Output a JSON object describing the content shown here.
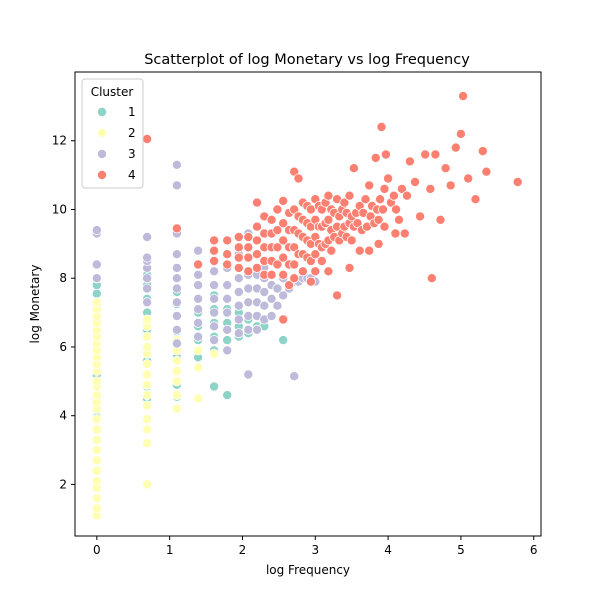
{
  "colors": {
    "cluster_1": "#8dd3c7",
    "cluster_2": "#ffffb3",
    "cluster_3": "#bebada",
    "cluster_4": "#fb8072",
    "marker_edge": "#ffffff",
    "axis": "#000000",
    "legend_border": "#cccccc"
  },
  "chart_data": {
    "type": "scatter",
    "title": "Scatterplot of log Monetary vs log Frequency",
    "xlabel": "log Frequency",
    "ylabel": "log Monetary",
    "xlim": [
      -0.3,
      6.1
    ],
    "ylim": [
      0.5,
      14.0
    ],
    "xticks": [
      0,
      1,
      2,
      3,
      4,
      5,
      6
    ],
    "yticks": [
      2,
      4,
      6,
      8,
      10,
      12
    ],
    "grid": false,
    "legend": {
      "title": "Cluster",
      "placement": "top-left",
      "entries": [
        "1",
        "2",
        "3",
        "4"
      ]
    },
    "series": [
      {
        "name": "1",
        "x": [
          0.0,
          0.0,
          0.0,
          0.0,
          0.0,
          0.0,
          0.0,
          0.0,
          0.0,
          0.0,
          0.0,
          0.69,
          0.69,
          0.69,
          0.69,
          0.69,
          0.69,
          0.69,
          0.69,
          0.69,
          0.69,
          1.1,
          1.1,
          1.1,
          1.1,
          1.1,
          1.1,
          1.1,
          1.1,
          1.1,
          1.1,
          1.39,
          1.39,
          1.39,
          1.39,
          1.39,
          1.39,
          1.61,
          1.61,
          1.61,
          1.61,
          1.61,
          1.61,
          1.79,
          1.79,
          1.79,
          1.79,
          1.95,
          1.95,
          1.95,
          2.08,
          2.08,
          2.2,
          2.3,
          2.56
        ],
        "y": [
          3.95,
          4.5,
          5.2,
          5.55,
          6.1,
          6.5,
          6.85,
          7.2,
          7.55,
          7.8,
          8.0,
          4.5,
          4.85,
          5.2,
          5.6,
          6.0,
          6.5,
          7.0,
          7.4,
          7.8,
          8.1,
          4.55,
          4.9,
          5.3,
          5.7,
          6.1,
          6.45,
          6.9,
          7.25,
          7.6,
          8.0,
          5.7,
          6.2,
          6.6,
          7.0,
          7.4,
          7.8,
          4.85,
          5.9,
          6.3,
          6.7,
          7.1,
          7.5,
          4.6,
          6.2,
          6.7,
          7.1,
          6.3,
          6.6,
          7.0,
          6.4,
          6.8,
          6.6,
          6.6,
          6.2
        ]
      },
      {
        "name": "2",
        "x": [
          0.0,
          0.0,
          0.0,
          0.0,
          0.0,
          0.0,
          0.0,
          0.0,
          0.0,
          0.0,
          0.0,
          0.0,
          0.0,
          0.0,
          0.0,
          0.0,
          0.0,
          0.0,
          0.0,
          0.0,
          0.0,
          0.0,
          0.0,
          0.0,
          0.0,
          0.0,
          0.0,
          0.69,
          0.69,
          0.69,
          0.69,
          0.69,
          0.69,
          0.69,
          0.69,
          0.69,
          0.69,
          0.69,
          0.69,
          0.69,
          0.69,
          0.69,
          1.1,
          1.1,
          1.1,
          1.1,
          1.1,
          1.1,
          1.1,
          1.1,
          1.39,
          1.39,
          1.39,
          1.61,
          1.61
        ],
        "y": [
          1.1,
          1.3,
          1.6,
          1.9,
          2.1,
          2.4,
          2.7,
          3.0,
          3.3,
          3.6,
          3.9,
          4.2,
          4.4,
          4.6,
          4.85,
          5.0,
          5.3,
          5.5,
          5.7,
          5.9,
          6.1,
          6.3,
          6.5,
          6.7,
          6.9,
          7.1,
          7.3,
          2.0,
          3.2,
          3.6,
          3.9,
          4.3,
          4.6,
          4.9,
          5.2,
          5.5,
          5.8,
          6.0,
          6.3,
          6.6,
          6.8,
          12.05,
          4.2,
          4.6,
          5.0,
          5.3,
          5.6,
          5.9,
          6.2,
          6.5,
          4.5,
          5.4,
          5.9,
          5.8,
          6.2
        ]
      },
      {
        "name": "3",
        "x": [
          0.0,
          0.0,
          0.0,
          0.0,
          0.69,
          0.69,
          0.69,
          0.69,
          0.69,
          0.69,
          0.69,
          1.1,
          1.1,
          1.1,
          1.1,
          1.1,
          1.1,
          1.1,
          1.1,
          1.1,
          1.1,
          1.1,
          1.39,
          1.39,
          1.39,
          1.39,
          1.39,
          1.39,
          1.39,
          1.39,
          1.61,
          1.61,
          1.61,
          1.61,
          1.61,
          1.61,
          1.61,
          1.61,
          1.79,
          1.79,
          1.79,
          1.79,
          1.79,
          1.79,
          1.95,
          1.95,
          1.95,
          1.95,
          1.95,
          1.95,
          2.08,
          2.08,
          2.08,
          2.08,
          2.08,
          2.08,
          2.2,
          2.2,
          2.2,
          2.2,
          2.2,
          2.3,
          2.3,
          2.3,
          2.3,
          2.3,
          2.4,
          2.4,
          2.4,
          2.48,
          2.48,
          2.56,
          2.56,
          2.64,
          2.71,
          2.77,
          2.83,
          2.89,
          2.94,
          3.0,
          2.08,
          2.71
        ],
        "y": [
          8.0,
          8.4,
          9.3,
          9.4,
          7.3,
          7.7,
          8.0,
          8.3,
          8.5,
          8.6,
          9.2,
          6.1,
          6.5,
          6.9,
          7.3,
          7.7,
          8.0,
          8.3,
          8.7,
          9.3,
          10.7,
          11.3,
          6.3,
          6.7,
          7.1,
          7.4,
          7.8,
          8.1,
          8.4,
          8.8,
          6.2,
          6.6,
          7.0,
          7.4,
          7.8,
          8.2,
          8.5,
          8.8,
          5.9,
          6.5,
          7.0,
          7.4,
          7.8,
          8.3,
          6.4,
          6.8,
          7.2,
          7.6,
          8.0,
          8.7,
          6.5,
          6.9,
          7.3,
          7.7,
          8.1,
          9.3,
          6.5,
          6.9,
          7.3,
          7.7,
          8.1,
          6.8,
          7.2,
          7.6,
          8.0,
          8.3,
          6.9,
          7.4,
          7.8,
          7.2,
          7.7,
          7.5,
          8.0,
          7.7,
          7.9,
          7.9,
          8.0,
          8.0,
          8.0,
          7.9,
          5.2,
          5.15
        ]
      },
      {
        "name": "4",
        "x": [
          0.69,
          1.1,
          1.39,
          1.61,
          1.61,
          1.61,
          1.79,
          1.79,
          1.79,
          1.95,
          1.95,
          1.95,
          1.95,
          2.08,
          2.08,
          2.08,
          2.08,
          2.2,
          2.2,
          2.2,
          2.2,
          2.2,
          2.3,
          2.3,
          2.3,
          2.3,
          2.3,
          2.4,
          2.4,
          2.4,
          2.4,
          2.4,
          2.48,
          2.48,
          2.48,
          2.48,
          2.56,
          2.56,
          2.56,
          2.56,
          2.56,
          2.64,
          2.64,
          2.64,
          2.64,
          2.71,
          2.71,
          2.71,
          2.71,
          2.71,
          2.77,
          2.77,
          2.77,
          2.77,
          2.83,
          2.83,
          2.83,
          2.83,
          2.83,
          2.89,
          2.89,
          2.89,
          2.89,
          2.94,
          2.94,
          2.94,
          2.94,
          3.0,
          3.0,
          3.0,
          3.0,
          3.0,
          3.05,
          3.05,
          3.05,
          3.09,
          3.09,
          3.09,
          3.14,
          3.14,
          3.14,
          3.18,
          3.18,
          3.18,
          3.22,
          3.22,
          3.22,
          3.26,
          3.26,
          3.3,
          3.3,
          3.33,
          3.33,
          3.37,
          3.37,
          3.4,
          3.4,
          3.43,
          3.43,
          3.47,
          3.47,
          3.5,
          3.5,
          3.53,
          3.53,
          3.56,
          3.58,
          3.61,
          3.64,
          3.66,
          3.69,
          3.71,
          3.74,
          3.76,
          3.78,
          3.81,
          3.83,
          3.85,
          3.87,
          3.89,
          3.91,
          3.93,
          3.95,
          3.97,
          4.0,
          4.04,
          4.08,
          4.11,
          4.15,
          4.19,
          4.23,
          4.26,
          4.3,
          4.37,
          4.44,
          4.51,
          4.58,
          4.6,
          4.65,
          4.72,
          4.79,
          4.86,
          4.93,
          5.0,
          5.03,
          5.1,
          5.2,
          5.3,
          5.35,
          5.78,
          2.56,
          2.64,
          2.71,
          2.94,
          3.3,
          3.18,
          3.09,
          3.47,
          3.61,
          3.74,
          3.87,
          3.95,
          4.1
        ],
        "y": [
          12.05,
          9.45,
          8.4,
          9.1,
          8.8,
          8.5,
          9.1,
          8.7,
          8.4,
          9.2,
          8.9,
          8.6,
          8.3,
          9.2,
          8.9,
          8.6,
          8.2,
          10.2,
          9.5,
          9.1,
          8.7,
          8.3,
          9.8,
          9.3,
          8.9,
          8.5,
          8.1,
          9.7,
          9.3,
          8.9,
          8.5,
          8.1,
          10.0,
          9.4,
          8.9,
          8.4,
          10.25,
          9.6,
          9.1,
          8.6,
          8.1,
          9.9,
          9.4,
          8.9,
          8.4,
          11.1,
          10.0,
          9.4,
          8.9,
          8.4,
          10.9,
          9.8,
          9.3,
          8.7,
          10.2,
          9.7,
          9.2,
          8.7,
          8.2,
          10.1,
          9.6,
          9.1,
          8.6,
          10.0,
          9.5,
          9.0,
          8.5,
          10.3,
          9.7,
          9.2,
          8.7,
          8.2,
          10.1,
          9.5,
          9.0,
          10.0,
          9.5,
          8.9,
          10.2,
          9.6,
          9.0,
          10.4,
          9.7,
          9.1,
          10.0,
          9.4,
          8.8,
          9.9,
          9.2,
          10.3,
          9.5,
          9.8,
          9.1,
          10.0,
          9.3,
          10.2,
          9.5,
          9.9,
          9.2,
          10.4,
          9.6,
          9.8,
          9.1,
          11.2,
          9.5,
          9.9,
          9.6,
          10.1,
          9.4,
          9.9,
          10.3,
          9.5,
          10.7,
          9.8,
          10.1,
          9.6,
          11.5,
          10.0,
          9.7,
          10.3,
          12.4,
          10.0,
          10.6,
          11.6,
          10.9,
          10.2,
          10.4,
          10.0,
          9.7,
          10.6,
          9.3,
          10.4,
          11.4,
          10.8,
          9.8,
          11.6,
          10.6,
          8.0,
          11.6,
          9.7,
          11.2,
          10.7,
          11.8,
          12.2,
          13.3,
          10.9,
          10.3,
          11.7,
          11.1,
          10.8,
          6.8,
          7.8,
          8.0,
          7.9,
          7.5,
          8.2,
          8.5,
          8.3,
          8.8,
          8.8,
          9.0,
          9.5,
          9.3
        ]
      }
    ]
  }
}
